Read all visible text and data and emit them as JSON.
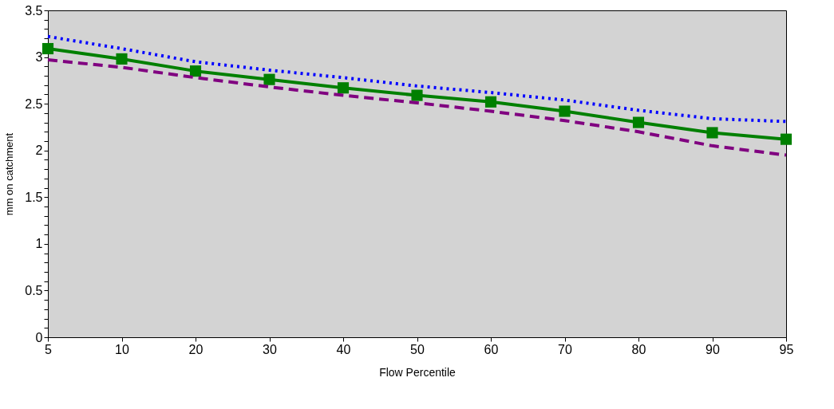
{
  "chart_data": {
    "type": "line",
    "xlabel": "Flow Percentile",
    "ylabel": "mm on catchment",
    "categories": [
      "5",
      "10",
      "20",
      "30",
      "40",
      "50",
      "60",
      "70",
      "80",
      "90",
      "95"
    ],
    "series": [
      {
        "color": "#0000ff",
        "line_style": "dotted",
        "marker": "none",
        "values": [
          3.22,
          3.09,
          2.95,
          2.86,
          2.78,
          2.69,
          2.62,
          2.54,
          2.43,
          2.34,
          2.31
        ]
      },
      {
        "color": "#008000",
        "line_style": "solid",
        "marker": "square",
        "values": [
          3.09,
          2.98,
          2.85,
          2.76,
          2.67,
          2.59,
          2.52,
          2.42,
          2.3,
          2.19,
          2.12
        ]
      },
      {
        "color": "#800080",
        "line_style": "dashed",
        "marker": "none",
        "values": [
          2.97,
          2.89,
          2.78,
          2.68,
          2.59,
          2.51,
          2.42,
          2.32,
          2.2,
          2.05,
          1.95
        ]
      }
    ],
    "ylim": [
      0,
      3.5
    ],
    "yticks": [
      0,
      {
        "value": 0.1,
        "label": null
      },
      {
        "value": 0.2,
        "label": null
      },
      {
        "value": 0.3,
        "label": null
      },
      {
        "value": 0.4,
        "label": null
      },
      0.5,
      {
        "value": 0.6,
        "label": null
      },
      {
        "value": 0.7,
        "label": null
      },
      {
        "value": 0.8,
        "label": null
      },
      {
        "value": 0.9,
        "label": null
      },
      1,
      {
        "value": 1.1,
        "label": null
      },
      {
        "value": 1.2,
        "label": null
      },
      {
        "value": 1.3,
        "label": null
      },
      {
        "value": 1.4,
        "label": null
      },
      1.5,
      {
        "value": 1.6,
        "label": null
      },
      {
        "value": 1.7,
        "label": null
      },
      {
        "value": 1.8,
        "label": null
      },
      {
        "value": 1.9,
        "label": null
      },
      2,
      {
        "value": 2.1,
        "label": null
      },
      {
        "value": 2.2,
        "label": null
      },
      {
        "value": 2.3,
        "label": null
      },
      {
        "value": 2.4,
        "label": null
      },
      2.5,
      {
        "value": 2.6,
        "label": null
      },
      {
        "value": 2.7,
        "label": null
      },
      {
        "value": 2.8,
        "label": null
      },
      {
        "value": 2.9,
        "label": null
      },
      3,
      {
        "value": 3.1,
        "label": null
      },
      {
        "value": 3.2,
        "label": null
      },
      {
        "value": 3.3,
        "label": null
      },
      {
        "value": 3.4,
        "label": null
      },
      3.5
    ],
    "grid": false
  }
}
